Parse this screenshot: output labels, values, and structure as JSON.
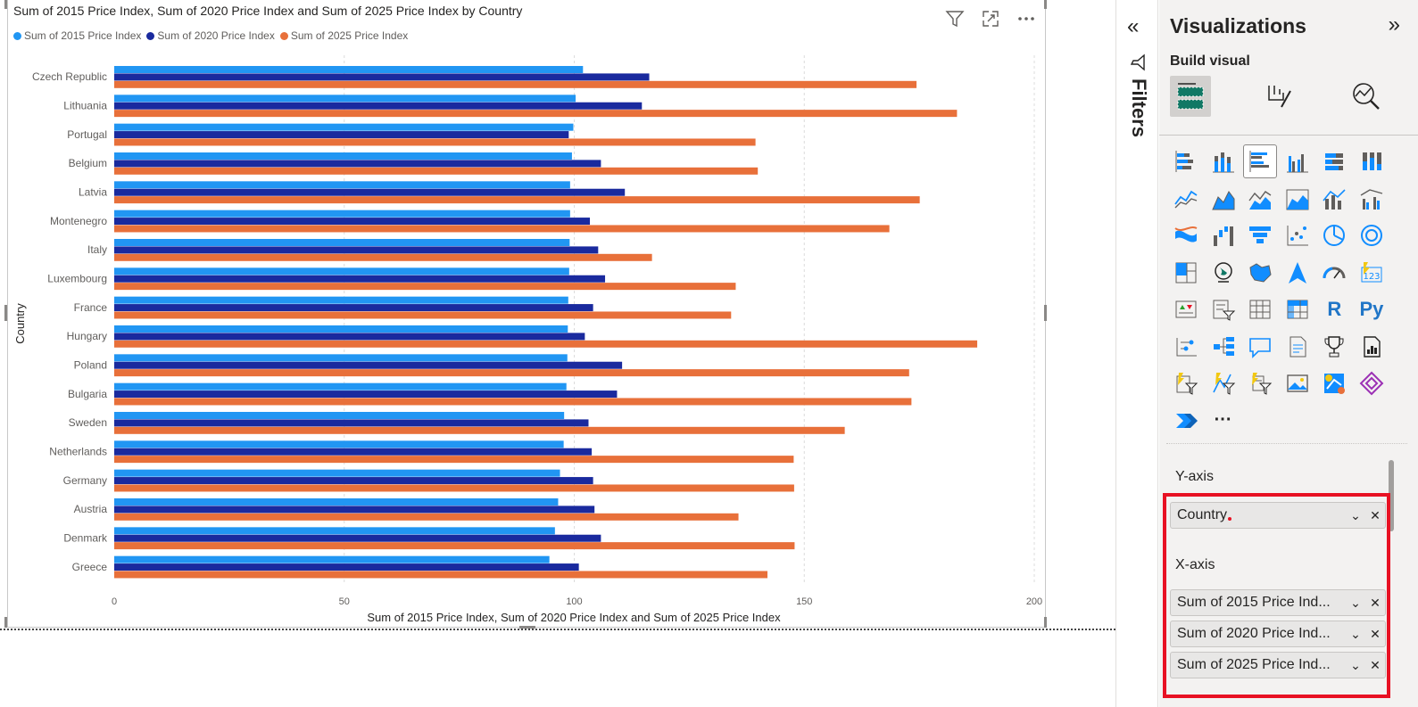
{
  "visual": {
    "title": "Sum of 2015 Price Index, Sum of 2020 Price Index and Sum of 2025 Price Index by Country",
    "legend": [
      {
        "label": "Sum of 2015 Price Index",
        "color": "#2196F3"
      },
      {
        "label": "Sum of 2020 Price Index",
        "color": "#1A2A9E"
      },
      {
        "label": "Sum of 2025 Price Index",
        "color": "#E8703A"
      }
    ],
    "header_icons": [
      "filter-icon",
      "focus-mode-icon",
      "more-options-icon"
    ]
  },
  "chart_data": {
    "type": "bar",
    "orientation": "horizontal",
    "title": "Sum of 2015 Price Index, Sum of 2020 Price Index and Sum of 2025 Price Index by Country",
    "xlabel": "Sum of 2015 Price Index, Sum of 2020 Price Index and Sum of 2025 Price Index",
    "ylabel": "Country",
    "xlim": [
      0,
      200
    ],
    "xticks": [
      "0",
      "50",
      "100",
      "150",
      "200"
    ],
    "grid": true,
    "legend_position": "top-left",
    "categories": [
      "Czech Republic",
      "Lithuania",
      "Portugal",
      "Belgium",
      "Latvia",
      "Montenegro",
      "Italy",
      "Luxembourg",
      "France",
      "Hungary",
      "Poland",
      "Bulgaria",
      "Sweden",
      "Netherlands",
      "Germany",
      "Austria",
      "Denmark",
      "Greece"
    ],
    "series": [
      {
        "name": "Sum of 2015 Price Index",
        "color": "#2196F3",
        "values": [
          101.9,
          100.3,
          99.8,
          99.5,
          99.1,
          99.1,
          99.0,
          98.9,
          98.7,
          98.6,
          98.5,
          98.3,
          97.8,
          97.7,
          96.9,
          96.5,
          95.8,
          94.6
        ]
      },
      {
        "name": "Sum of 2020 Price Index",
        "color": "#1A2A9E",
        "values": [
          116.3,
          114.7,
          98.8,
          105.8,
          111.0,
          103.4,
          105.2,
          106.7,
          104.1,
          102.3,
          110.4,
          109.3,
          103.1,
          103.8,
          104.1,
          104.4,
          105.8,
          101.0
        ]
      },
      {
        "name": "Sum of 2025 Price Index",
        "color": "#E8703A",
        "values": [
          174.4,
          183.2,
          139.4,
          139.9,
          175.1,
          168.5,
          116.9,
          135.1,
          134.1,
          187.6,
          172.8,
          173.3,
          158.8,
          147.7,
          147.8,
          135.7,
          147.9,
          142.0
        ]
      }
    ]
  },
  "filters_pane": {
    "collapse_glyph": "«",
    "label": "Filters"
  },
  "viz_pane": {
    "title": "Visualizations",
    "expand_glyph": "»",
    "build_visual": "Build visual",
    "more_visuals": "···",
    "r_label": "R",
    "py_label": "Py",
    "wells": {
      "y_axis_label": "Y-axis",
      "y_fields": [
        "Country"
      ],
      "x_axis_label": "X-axis",
      "x_fields": [
        "Sum of 2015 Price Ind...",
        "Sum of 2020 Price Ind...",
        "Sum of 2025 Price Ind..."
      ]
    }
  }
}
